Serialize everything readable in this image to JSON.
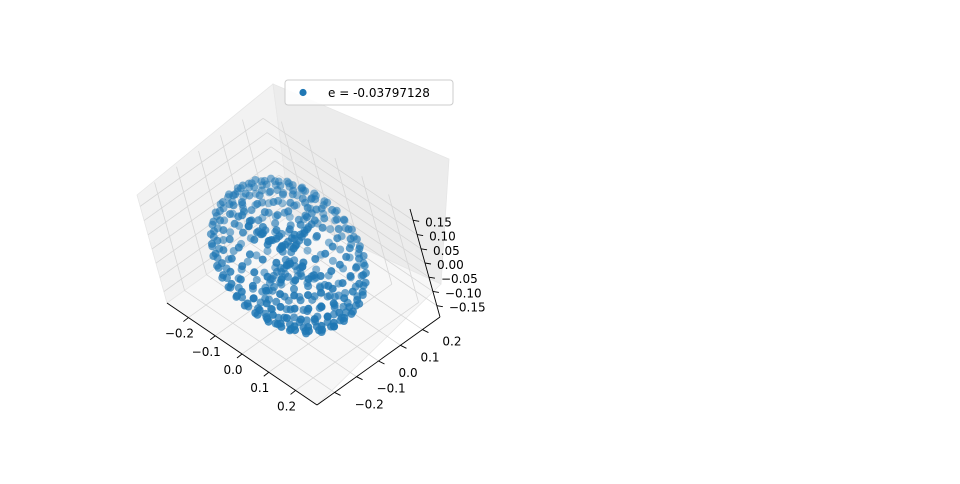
{
  "chart_data": {
    "type": "scatter",
    "projection": "3d",
    "title": "",
    "xlabel": "",
    "ylabel": "",
    "zlabel": "",
    "xlim": [
      -0.28,
      0.28
    ],
    "ylim": [
      -0.28,
      0.28
    ],
    "zlim": [
      -0.19,
      0.19
    ],
    "xticks": [
      "−0.2",
      "−0.1",
      "0.0",
      "0.1",
      "0.2"
    ],
    "yticks": [
      "−0.2",
      "−0.1",
      "0.0",
      "0.1",
      "0.2"
    ],
    "zticks": [
      "−0.15",
      "−0.10",
      "−0.05",
      "0.00",
      "0.05",
      "0.10",
      "0.15"
    ],
    "grid": true,
    "legend": {
      "placement": "top-left",
      "entries": [
        "e = -0.03797128"
      ]
    },
    "series": [
      {
        "name": "e = -0.03797128",
        "color": "#1f77b4",
        "shape": "orbital isosurface: ellipsoid shell plus central double-cone lobes",
        "shell_radii": [
          0.22,
          0.22,
          0.19
        ],
        "cone_radius": 0.12
      }
    ]
  }
}
